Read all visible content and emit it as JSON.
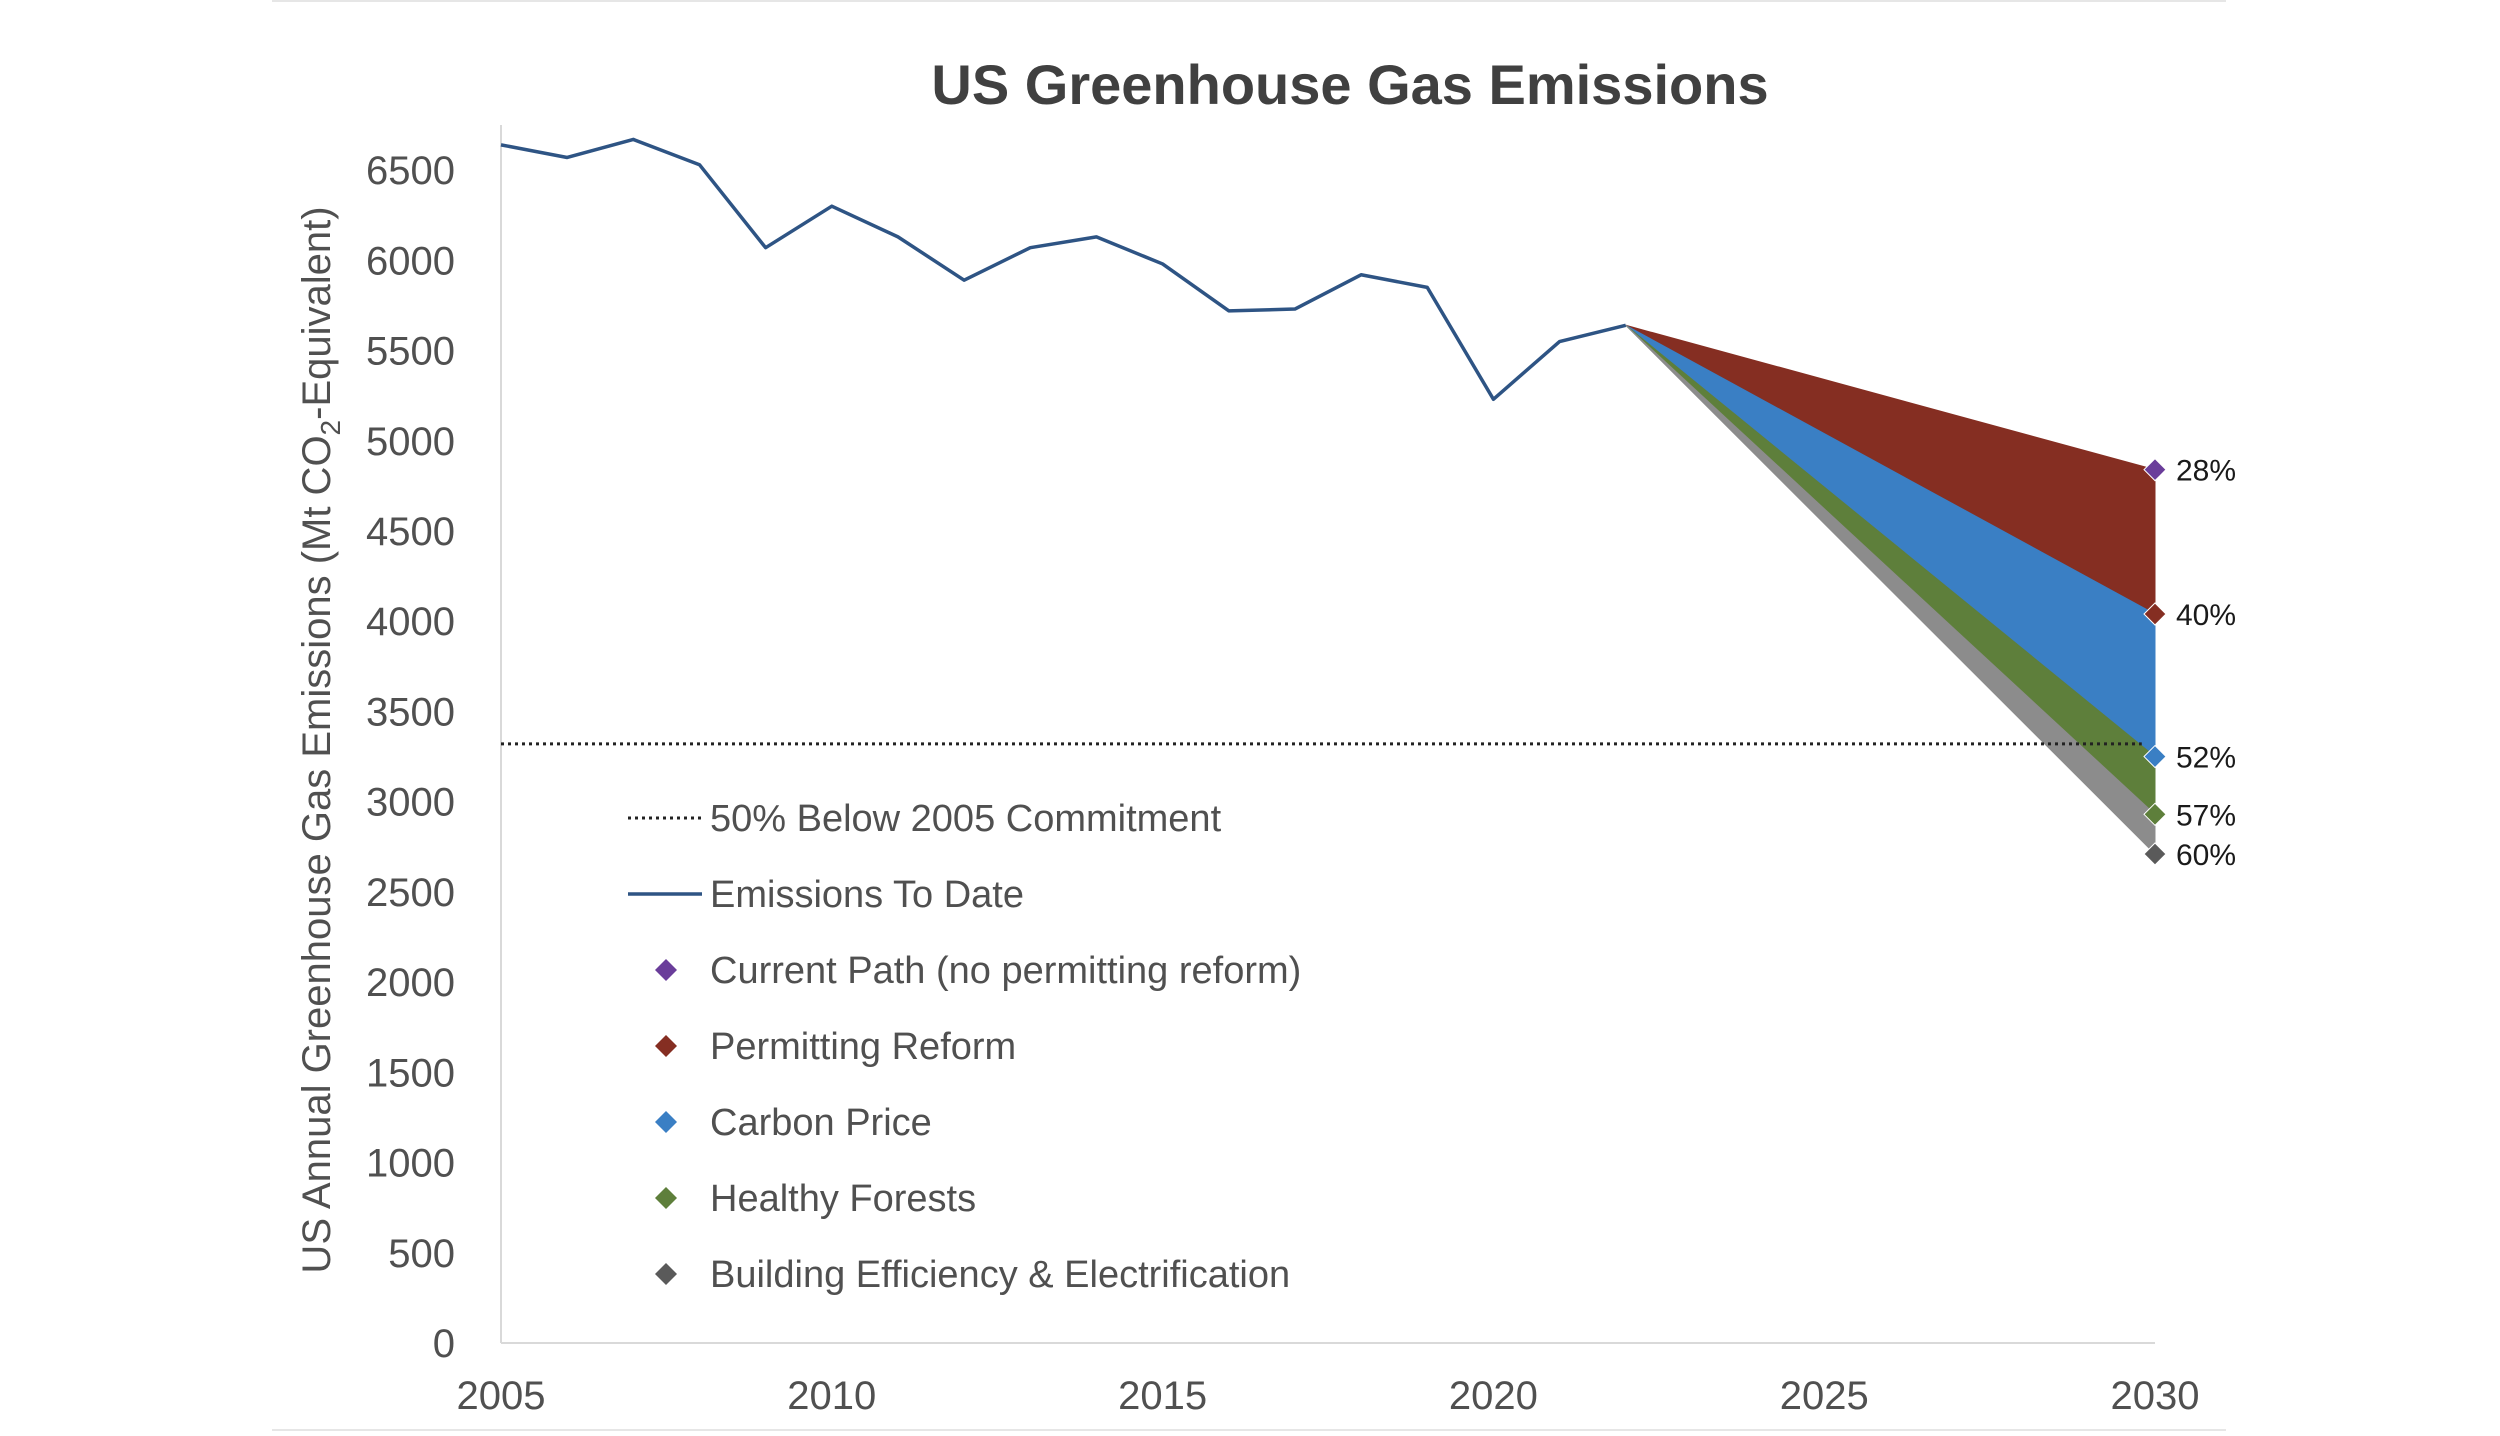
{
  "chart_data": {
    "type": "line",
    "title": "US Greenhouse Gas Emissions",
    "ylabel_prefix": "US Annual Greenhouse Gas Emissions (Mt CO",
    "ylabel_sub": "2",
    "ylabel_suffix": "-Equivalent)",
    "xlabel": "",
    "xlim": [
      2005,
      2030
    ],
    "ylim": [
      0,
      6750
    ],
    "x_ticks": [
      2005,
      2010,
      2015,
      2020,
      2025,
      2030
    ],
    "y_ticks": [
      0,
      500,
      1000,
      1500,
      2000,
      2500,
      3000,
      3500,
      4000,
      4500,
      5000,
      5500,
      6000,
      6500
    ],
    "commitment": {
      "name": "50% Below 2005 Commitment",
      "value": 3320,
      "x_end": 2029.8
    },
    "emissions": {
      "name": "Emissions To Date",
      "color": "#2E5484",
      "x": [
        2005,
        2006,
        2007,
        2008,
        2009,
        2010,
        2011,
        2012,
        2013,
        2014,
        2015,
        2016,
        2017,
        2018,
        2019,
        2020,
        2021,
        2022
      ],
      "y": [
        6640,
        6570,
        6670,
        6530,
        6070,
        6300,
        6130,
        5890,
        6070,
        6130,
        5980,
        5720,
        5730,
        5920,
        5850,
        5230,
        5550,
        5640
      ]
    },
    "projection_start": {
      "x": 2022,
      "y": 5640
    },
    "scenarios": [
      {
        "name": "Current Path (no permitting reform)",
        "marker_color": "#6A3D9A",
        "fill_color": "#852E22",
        "value_2030": 4840,
        "label": "28%"
      },
      {
        "name": "Permitting Reform",
        "marker_color": "#852E22",
        "fill_color": "#3A7FC4",
        "value_2030": 4040,
        "label": "40%"
      },
      {
        "name": "Carbon Price",
        "marker_color": "#3A7FC4",
        "fill_color": "#5E7F3B",
        "value_2030": 3250,
        "label": "52%"
      },
      {
        "name": "Healthy Forests",
        "marker_color": "#5E7F3B",
        "fill_color": "#8C8C8C",
        "value_2030": 2930,
        "label": "57%"
      },
      {
        "name": "Building Efficiency & Electrification",
        "marker_color": "#5A5A5A",
        "fill_color": null,
        "value_2030": 2710,
        "label": "60%"
      }
    ]
  }
}
